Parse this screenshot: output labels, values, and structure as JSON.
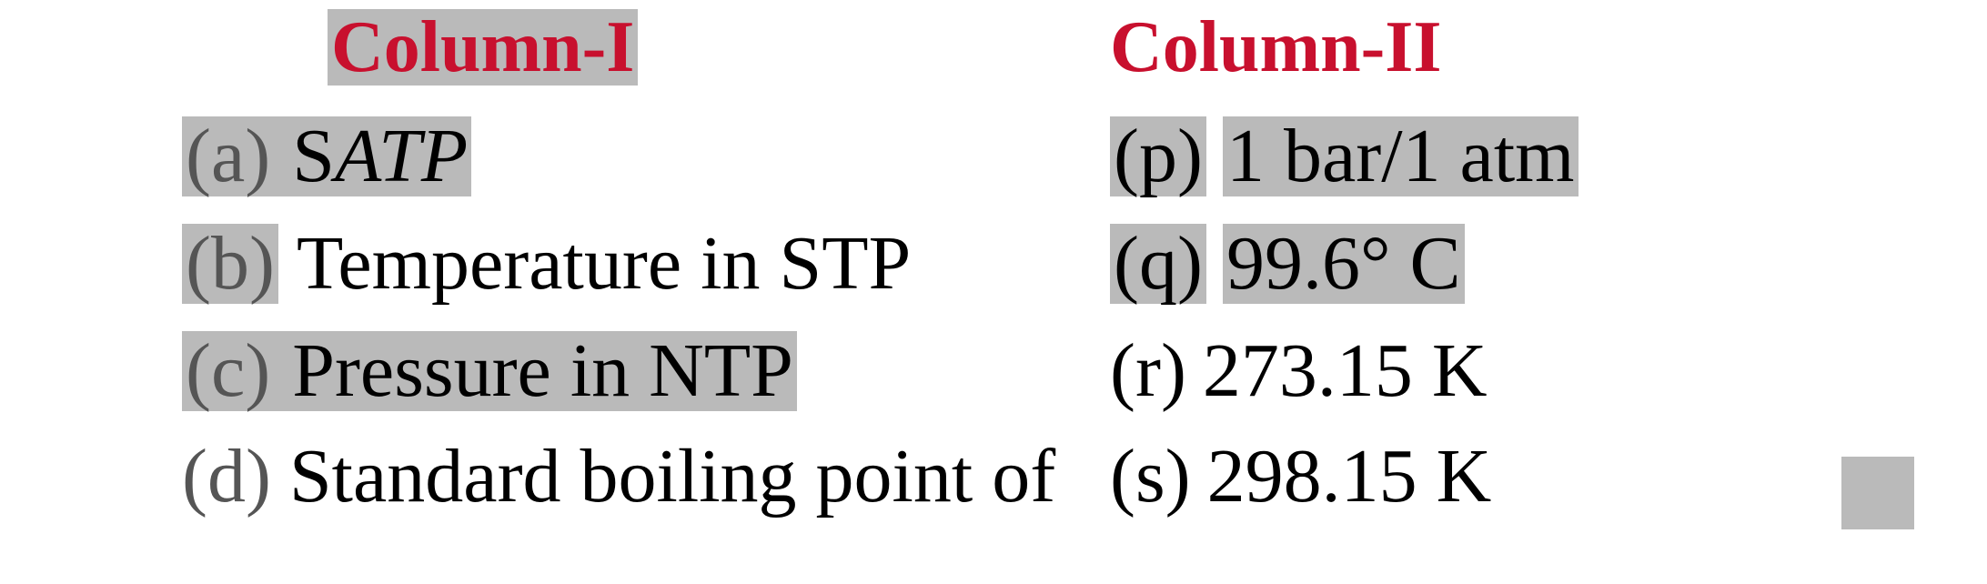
{
  "headers": {
    "col1": "Column-I",
    "col2": "Column-II"
  },
  "rows": [
    {
      "left_marker": "(a)",
      "left_text_prefix": "S",
      "left_text_italic": "ATP",
      "left_text_suffix": "",
      "right_marker": "(p)",
      "right_text": "1 bar/1 atm",
      "left_highlight_full": true,
      "right_highlight_marker": true,
      "right_highlight_text": true
    },
    {
      "left_marker": "(b)",
      "left_text": "Temperature in STP",
      "right_marker": "(q)",
      "right_text": "99.6° C",
      "left_highlight_marker": true,
      "left_highlight_text": false,
      "right_highlight_marker": true,
      "right_highlight_text": true
    },
    {
      "left_marker": "(c)",
      "left_text": "Pressure in NTP",
      "right_marker": "(r)",
      "right_text": "273.15 K",
      "left_highlight_full": true,
      "right_highlight_marker": false,
      "right_highlight_text": false
    },
    {
      "left_marker": "(d)",
      "left_text": "Standard boiling point of",
      "right_marker": "(s)",
      "right_text": "298.15 K",
      "left_highlight_full": false,
      "right_highlight_marker": false,
      "right_highlight_text": false
    }
  ],
  "colors": {
    "header_red": "#c8102e",
    "text_black": "#000000",
    "marker_gray": "#555555",
    "highlight_bg": "#bababa"
  },
  "typography": {
    "header_fontsize": 80,
    "content_fontsize": 84,
    "font_family": "Times New Roman"
  }
}
